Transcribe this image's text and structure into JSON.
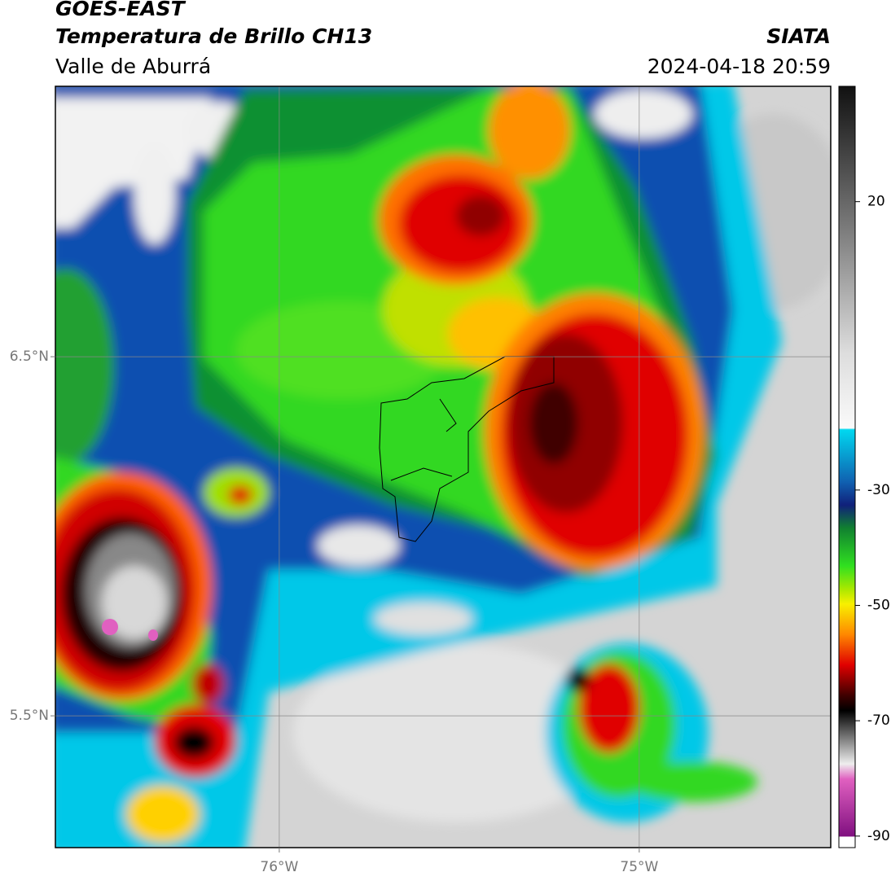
{
  "header": {
    "title": "GOES-EAST",
    "subtitle": "Temperatura de Brillo CH13",
    "region": "Valle de Aburrá",
    "source": "SIATA",
    "datetime": "2024-04-18 20:59"
  },
  "map": {
    "xlim": [
      -76.622,
      -74.468
    ],
    "ylim": [
      5.133,
      7.253
    ],
    "xticks": [
      {
        "value": -76,
        "label": "76°W"
      },
      {
        "value": -75,
        "label": "75°W"
      }
    ],
    "yticks": [
      {
        "value": 6.5,
        "label": "6.5°N"
      },
      {
        "value": 5.5,
        "label": "5.5°N"
      }
    ],
    "grid": true
  },
  "colorbar": {
    "lim": [
      -92,
      40
    ],
    "ticks": [
      20,
      -30,
      -50,
      -70,
      -90
    ]
  }
}
